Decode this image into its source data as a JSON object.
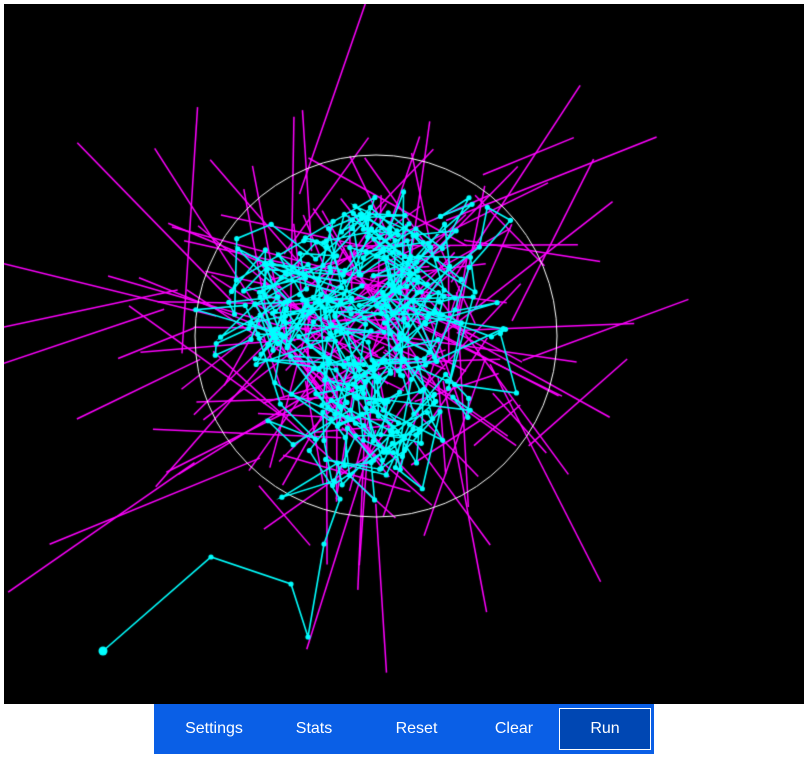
{
  "toolbar": {
    "buttons": [
      {
        "label": "Settings"
      },
      {
        "label": "Stats"
      },
      {
        "label": "Reset"
      },
      {
        "label": "Clear"
      },
      {
        "label": "Run",
        "active": true
      }
    ]
  },
  "colors": {
    "background": "#000000",
    "walk_path": "#00ffff",
    "rays": "#ff00ff",
    "boundary_circle": "#ffffff",
    "toolbar": "#0a5fe6",
    "run_active": "#0047b3"
  },
  "icons": {
    "walker": "cyan-dot"
  }
}
